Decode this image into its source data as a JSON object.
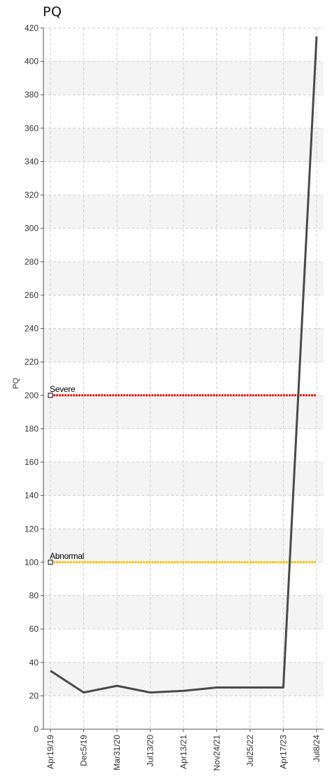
{
  "chart_data": {
    "type": "line",
    "title": "PQ",
    "ylabel": "PQ",
    "xlabel": "",
    "ylim": [
      0,
      420
    ],
    "ytick_step": 20,
    "grid": true,
    "categories": [
      "Apr19/19",
      "Dec5/19",
      "Mar31/20",
      "Jul13/20",
      "Apr13/21",
      "Nov24/21",
      "Jul25/22",
      "Apr17/23",
      "Jul8/24"
    ],
    "series": [
      {
        "name": "",
        "color": "#4a4a4a",
        "values": [
          35,
          22,
          26,
          22,
          23,
          25,
          25,
          25,
          415
        ]
      }
    ],
    "thresholds": [
      {
        "label": "Severe",
        "value": 200,
        "color": "#e8201e"
      },
      {
        "label": "Abnormal",
        "value": 100,
        "color": "#f5c400"
      }
    ]
  }
}
